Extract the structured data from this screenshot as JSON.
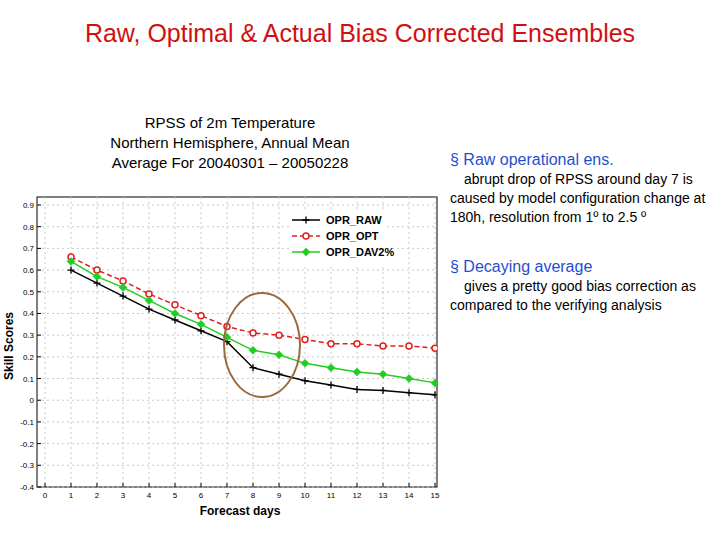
{
  "slide": {
    "title": "Raw, Optimal & Actual Bias Corrected Ensembles",
    "bullet": "§",
    "bullets": [
      {
        "heading": "Raw operational ens.",
        "text": "abrupt drop of RPSS around day 7 is caused by model configuration change at 180h, resolution from 1º to 2.5 º"
      },
      {
        "heading": "Decaying average",
        "text": "gives a pretty good bias correction as compared to the verifying analysis"
      }
    ]
  },
  "chart_data": {
    "type": "line",
    "title": [
      "RPSS of 2m Temperature",
      "Northern Hemisphere, Annual Mean",
      "Average For 20040301 – 20050228"
    ],
    "x_label": "Forecast days",
    "y_label": "Skill Scores",
    "x": [
      1,
      2,
      3,
      4,
      5,
      6,
      7,
      8,
      9,
      10,
      11,
      12,
      13,
      14,
      15
    ],
    "series": [
      {
        "name": "OPR_RAW",
        "color": "#000000",
        "marker": "plus",
        "line_style": "solid",
        "values": [
          0.6,
          0.54,
          0.48,
          0.42,
          0.37,
          0.32,
          0.27,
          0.15,
          0.12,
          0.09,
          0.07,
          0.05,
          0.045,
          0.035,
          0.025
        ]
      },
      {
        "name": "OPR_OPT",
        "color": "#e02020",
        "marker": "circle",
        "line_style": "dashed",
        "values": [
          0.66,
          0.6,
          0.55,
          0.49,
          0.44,
          0.39,
          0.34,
          0.31,
          0.3,
          0.28,
          0.26,
          0.26,
          0.25,
          0.25,
          0.24
        ]
      },
      {
        "name": "OPR_DAV2%",
        "color": "#22cc22",
        "marker": "diamond",
        "line_style": "solid",
        "values": [
          0.64,
          0.57,
          0.52,
          0.46,
          0.4,
          0.35,
          0.29,
          0.23,
          0.21,
          0.17,
          0.15,
          0.13,
          0.12,
          0.1,
          0.08
        ]
      }
    ],
    "xlim": [
      0,
      15
    ],
    "xticks": [
      0,
      1,
      2,
      3,
      4,
      5,
      6,
      7,
      8,
      9,
      10,
      11,
      12,
      13,
      14,
      15
    ],
    "ylim": [
      -0.4,
      0.9
    ],
    "yticks": [
      -0.4,
      -0.3,
      -0.2,
      -0.1,
      0,
      0.1,
      0.2,
      0.3,
      0.4,
      0.5,
      0.6,
      0.7,
      0.8,
      0.9
    ],
    "grid": true,
    "legend": "upper-right"
  }
}
